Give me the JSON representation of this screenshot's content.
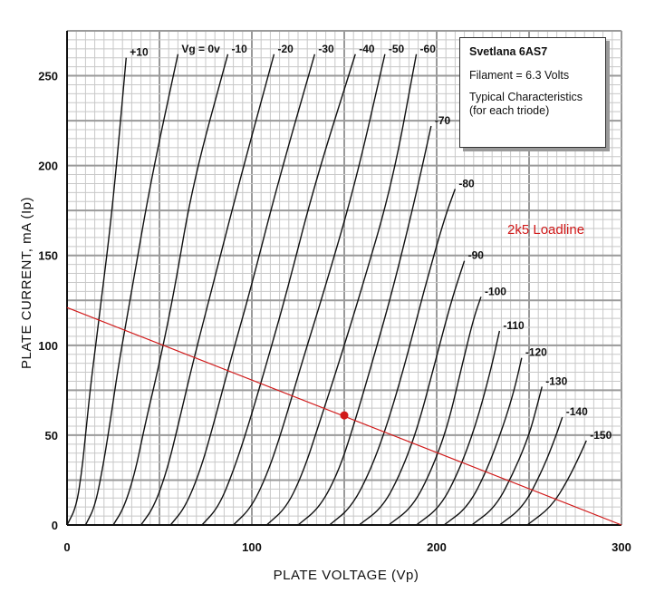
{
  "chart_data": {
    "type": "line",
    "title": "",
    "xlabel": "PLATE VOLTAGE (Vp)",
    "ylabel": "PLATE CURRENT, mA (Ip)",
    "xlim": [
      0,
      300
    ],
    "ylim": [
      0,
      275
    ],
    "x_ticks": [
      0,
      100,
      200,
      300
    ],
    "y_ticks": [
      0,
      50,
      100,
      150,
      200,
      250
    ],
    "grid": true,
    "series": [
      {
        "name": "+10",
        "points": [
          [
            0,
            0
          ],
          [
            5,
            10
          ],
          [
            8,
            30
          ],
          [
            10,
            50
          ],
          [
            13,
            80
          ],
          [
            18,
            120
          ],
          [
            25,
            180
          ],
          [
            32,
            260
          ]
        ]
      },
      {
        "name": "Vg = 0v",
        "points": [
          [
            10,
            0
          ],
          [
            15,
            10
          ],
          [
            19,
            30
          ],
          [
            23,
            55
          ],
          [
            28,
            90
          ],
          [
            35,
            130
          ],
          [
            45,
            190
          ],
          [
            60,
            262
          ]
        ]
      },
      {
        "name": "-10",
        "points": [
          [
            25,
            0
          ],
          [
            31,
            10
          ],
          [
            37,
            30
          ],
          [
            42,
            55
          ],
          [
            50,
            90
          ],
          [
            58,
            130
          ],
          [
            68,
            190
          ],
          [
            87,
            262
          ]
        ]
      },
      {
        "name": "-20",
        "points": [
          [
            40,
            0
          ],
          [
            47,
            10
          ],
          [
            54,
            30
          ],
          [
            60,
            55
          ],
          [
            68,
            90
          ],
          [
            78,
            130
          ],
          [
            93,
            190
          ],
          [
            112,
            262
          ]
        ]
      },
      {
        "name": "-30",
        "points": [
          [
            56,
            0
          ],
          [
            64,
            10
          ],
          [
            72,
            30
          ],
          [
            79,
            55
          ],
          [
            88,
            90
          ],
          [
            99,
            130
          ],
          [
            114,
            190
          ],
          [
            134,
            262
          ]
        ]
      },
      {
        "name": "-40",
        "points": [
          [
            73,
            0
          ],
          [
            82,
            10
          ],
          [
            90,
            30
          ],
          [
            98,
            55
          ],
          [
            108,
            90
          ],
          [
            119,
            130
          ],
          [
            134,
            190
          ],
          [
            156,
            262
          ]
        ]
      },
      {
        "name": "-50",
        "points": [
          [
            90,
            0
          ],
          [
            100,
            10
          ],
          [
            109,
            30
          ],
          [
            117,
            55
          ],
          [
            127,
            90
          ],
          [
            139,
            130
          ],
          [
            156,
            190
          ],
          [
            172,
            262
          ]
        ]
      },
      {
        "name": "-60",
        "points": [
          [
            108,
            0
          ],
          [
            119,
            10
          ],
          [
            128,
            30
          ],
          [
            136,
            55
          ],
          [
            147,
            90
          ],
          [
            159,
            130
          ],
          [
            176,
            190
          ],
          [
            189,
            262
          ]
        ]
      },
      {
        "name": "-70",
        "points": [
          [
            125,
            0
          ],
          [
            137,
            10
          ],
          [
            147,
            30
          ],
          [
            155,
            55
          ],
          [
            165,
            90
          ],
          [
            176,
            130
          ],
          [
            188,
            180
          ],
          [
            197,
            222
          ]
        ]
      },
      {
        "name": "-80",
        "points": [
          [
            142,
            0
          ],
          [
            154,
            10
          ],
          [
            164,
            30
          ],
          [
            173,
            55
          ],
          [
            183,
            90
          ],
          [
            193,
            130
          ],
          [
            204,
            170
          ],
          [
            210,
            187
          ]
        ]
      },
      {
        "name": "-90",
        "points": [
          [
            158,
            0
          ],
          [
            171,
            10
          ],
          [
            181,
            30
          ],
          [
            190,
            55
          ],
          [
            199,
            90
          ],
          [
            208,
            125
          ],
          [
            215,
            147
          ]
        ]
      },
      {
        "name": "-100",
        "points": [
          [
            174,
            0
          ],
          [
            187,
            10
          ],
          [
            197,
            30
          ],
          [
            206,
            55
          ],
          [
            214,
            90
          ],
          [
            220,
            115
          ],
          [
            224,
            127
          ]
        ]
      },
      {
        "name": "-110",
        "points": [
          [
            189,
            0
          ],
          [
            202,
            10
          ],
          [
            212,
            30
          ],
          [
            221,
            55
          ],
          [
            229,
            85
          ],
          [
            234,
            108
          ]
        ]
      },
      {
        "name": "-120",
        "points": [
          [
            204,
            0
          ],
          [
            217,
            10
          ],
          [
            227,
            30
          ],
          [
            236,
            55
          ],
          [
            242,
            75
          ],
          [
            246,
            93
          ]
        ]
      },
      {
        "name": "-130",
        "points": [
          [
            219,
            0
          ],
          [
            232,
            10
          ],
          [
            242,
            30
          ],
          [
            250,
            50
          ],
          [
            254,
            65
          ],
          [
            257,
            77
          ]
        ]
      },
      {
        "name": "-140",
        "points": [
          [
            234,
            0
          ],
          [
            247,
            10
          ],
          [
            257,
            30
          ],
          [
            264,
            48
          ],
          [
            268,
            60
          ]
        ]
      },
      {
        "name": "-150",
        "points": [
          [
            249,
            0
          ],
          [
            262,
            10
          ],
          [
            271,
            25
          ],
          [
            278,
            40
          ],
          [
            281,
            47
          ]
        ]
      }
    ],
    "loadline": {
      "name": "2k5 Loadline",
      "points": [
        [
          0,
          121
        ],
        [
          300,
          0
        ]
      ],
      "color": "#d11a1a"
    },
    "operating_point": {
      "x": 150,
      "y": 61,
      "color": "#d11a1a"
    }
  },
  "info_box": {
    "title": "Svetlana 6AS7",
    "filament": "Filament = 6.3 Volts",
    "desc_line1": "Typical Characteristics",
    "desc_line2": "(for each triode)"
  }
}
